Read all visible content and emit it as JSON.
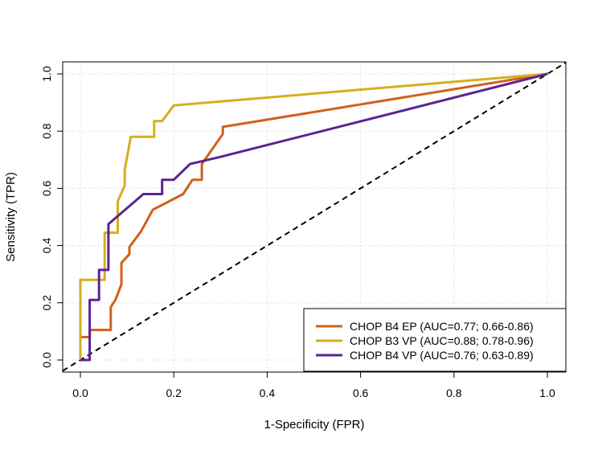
{
  "chart_data": {
    "type": "line",
    "title": "",
    "xlabel": "1-Specificity (FPR)",
    "ylabel": "Sensitivity (TPR)",
    "xlim": [
      0,
      1
    ],
    "ylim": [
      0,
      1
    ],
    "xticks": [
      "0.0",
      "0.2",
      "0.4",
      "0.6",
      "0.8",
      "1.0"
    ],
    "yticks": [
      "0.0",
      "0.2",
      "0.4",
      "0.6",
      "0.8",
      "1.0"
    ],
    "grid": true,
    "legend_position": "bottom-right",
    "reference_line": {
      "style": "dashed",
      "color": "#000000",
      "points": [
        [
          0,
          0
        ],
        [
          1,
          1
        ]
      ]
    },
    "series": [
      {
        "name": "CHOP B4 EP (AUC=0.77; 0.66-0.86)",
        "color": "#D2601A",
        "points": [
          [
            0,
            0
          ],
          [
            0,
            0.08
          ],
          [
            0.02,
            0.08
          ],
          [
            0.02,
            0.105
          ],
          [
            0.065,
            0.105
          ],
          [
            0.065,
            0.185
          ],
          [
            0.075,
            0.21
          ],
          [
            0.088,
            0.265
          ],
          [
            0.088,
            0.34
          ],
          [
            0.105,
            0.37
          ],
          [
            0.105,
            0.395
          ],
          [
            0.13,
            0.45
          ],
          [
            0.155,
            0.525
          ],
          [
            0.22,
            0.58
          ],
          [
            0.24,
            0.63
          ],
          [
            0.26,
            0.63
          ],
          [
            0.26,
            0.685
          ],
          [
            0.305,
            0.79
          ],
          [
            0.305,
            0.815
          ],
          [
            1,
            1
          ]
        ]
      },
      {
        "name": "CHOP B3 VP (AUC=0.88; 0.78-0.96)",
        "color": "#D4AF1E",
        "points": [
          [
            0,
            0
          ],
          [
            0,
            0.28
          ],
          [
            0.052,
            0.28
          ],
          [
            0.052,
            0.445
          ],
          [
            0.08,
            0.445
          ],
          [
            0.08,
            0.555
          ],
          [
            0.095,
            0.61
          ],
          [
            0.095,
            0.665
          ],
          [
            0.108,
            0.78
          ],
          [
            0.158,
            0.78
          ],
          [
            0.158,
            0.835
          ],
          [
            0.175,
            0.835
          ],
          [
            0.2,
            0.89
          ],
          [
            1,
            1
          ]
        ]
      },
      {
        "name": "CHOP B4 VP (AUC=0.76; 0.63-0.89)",
        "color": "#5B2490",
        "points": [
          [
            0,
            0
          ],
          [
            0.02,
            0
          ],
          [
            0.02,
            0.21
          ],
          [
            0.04,
            0.21
          ],
          [
            0.04,
            0.315
          ],
          [
            0.06,
            0.315
          ],
          [
            0.06,
            0.475
          ],
          [
            0.135,
            0.58
          ],
          [
            0.175,
            0.58
          ],
          [
            0.175,
            0.63
          ],
          [
            0.2,
            0.63
          ],
          [
            0.235,
            0.685
          ],
          [
            0.3,
            0.71
          ],
          [
            1,
            1
          ]
        ]
      }
    ]
  }
}
